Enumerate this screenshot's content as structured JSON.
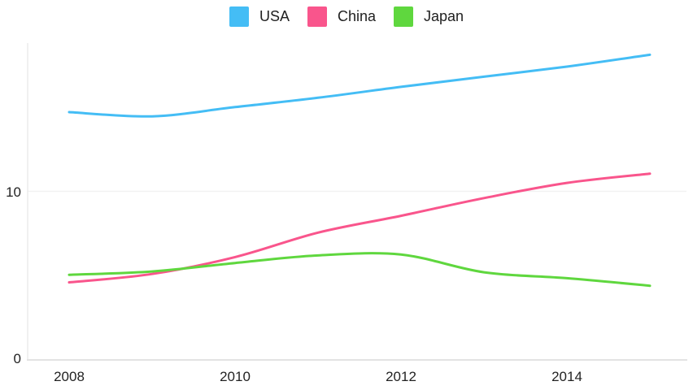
{
  "legend": {
    "items": [
      {
        "label": "USA",
        "color": "#44BDF5"
      },
      {
        "label": "China",
        "color": "#F9558C"
      },
      {
        "label": "Japan",
        "color": "#5FD73E"
      }
    ]
  },
  "chart_data": {
    "type": "line",
    "x": [
      2008,
      2009,
      2010,
      2011,
      2012,
      2013,
      2014,
      2015
    ],
    "series": [
      {
        "name": "USA",
        "color": "#44BDF5",
        "values": [
          14.7,
          14.45,
          15.0,
          15.55,
          16.2,
          16.8,
          17.4,
          18.1
        ]
      },
      {
        "name": "China",
        "color": "#F9558C",
        "values": [
          4.6,
          5.1,
          6.1,
          7.55,
          8.55,
          9.6,
          10.5,
          11.05
        ]
      },
      {
        "name": "Japan",
        "color": "#5FD73E",
        "values": [
          5.05,
          5.25,
          5.75,
          6.2,
          6.25,
          5.2,
          4.85,
          4.4
        ]
      }
    ],
    "title": "",
    "xlabel": "",
    "ylabel": "",
    "ylim": [
      0,
      18.8
    ],
    "y_ticks": [
      0,
      10
    ],
    "y_tick_labels": [
      "0",
      "10"
    ],
    "x_tick_labels": [
      "2008",
      "2010",
      "2012",
      "2014"
    ],
    "grid": "horizontal",
    "legend_position": "top",
    "axis_color": "#e3e3e3",
    "grid_color": "#f2f2f2",
    "text_color": "#222222",
    "background": "#ffffff"
  }
}
